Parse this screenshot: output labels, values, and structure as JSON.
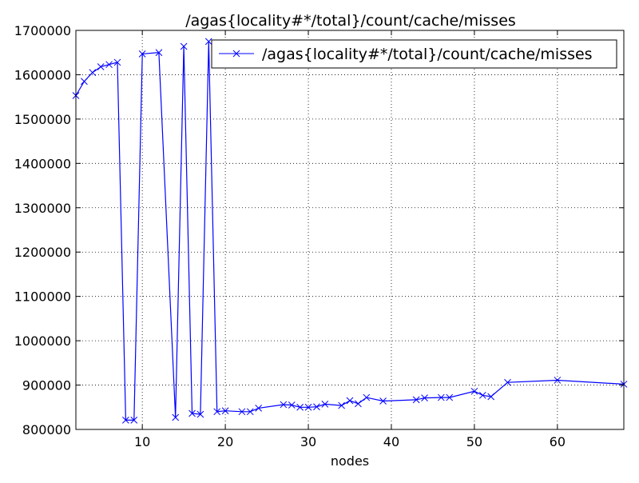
{
  "chart_data": {
    "type": "line",
    "title": "/agas{locality#*/total}/count/cache/misses",
    "xlabel": "nodes",
    "ylabel": "",
    "xlim": [
      2,
      68
    ],
    "ylim": [
      800000,
      1700000
    ],
    "x_ticks": [
      10,
      20,
      30,
      40,
      50,
      60
    ],
    "y_ticks": [
      800000,
      900000,
      1000000,
      1100000,
      1200000,
      1300000,
      1400000,
      1500000,
      1600000,
      1700000
    ],
    "x_tick_labels": [
      "10",
      "20",
      "30",
      "40",
      "50",
      "60"
    ],
    "y_tick_labels": [
      "800000",
      "900000",
      "1000000",
      "1100000",
      "1200000",
      "1300000",
      "1400000",
      "1500000",
      "1600000",
      "1700000"
    ],
    "grid": true,
    "legend_position": "top-right",
    "series": [
      {
        "name": "/agas{locality#*/total}/count/cache/misses",
        "color": "#0000ff",
        "marker": "x",
        "x": [
          2,
          3,
          4,
          5,
          6,
          7,
          8,
          9,
          10,
          12,
          14,
          15,
          16,
          17,
          18,
          19,
          20,
          22,
          23,
          24,
          27,
          28,
          29,
          30,
          31,
          32,
          34,
          35,
          36,
          37,
          39,
          43,
          44,
          46,
          47,
          50,
          51,
          52,
          54,
          60,
          68
        ],
        "y": [
          1553000,
          1585000,
          1605000,
          1618000,
          1623000,
          1628000,
          821000,
          821000,
          1647000,
          1650000,
          827000,
          1664000,
          836000,
          834000,
          1675000,
          840000,
          842000,
          840000,
          840000,
          848000,
          856000,
          855000,
          850000,
          850000,
          851000,
          857000,
          854000,
          865000,
          858000,
          872000,
          864000,
          867000,
          871000,
          872000,
          872000,
          886000,
          877000,
          874000,
          906000,
          911000,
          902000
        ]
      }
    ]
  }
}
